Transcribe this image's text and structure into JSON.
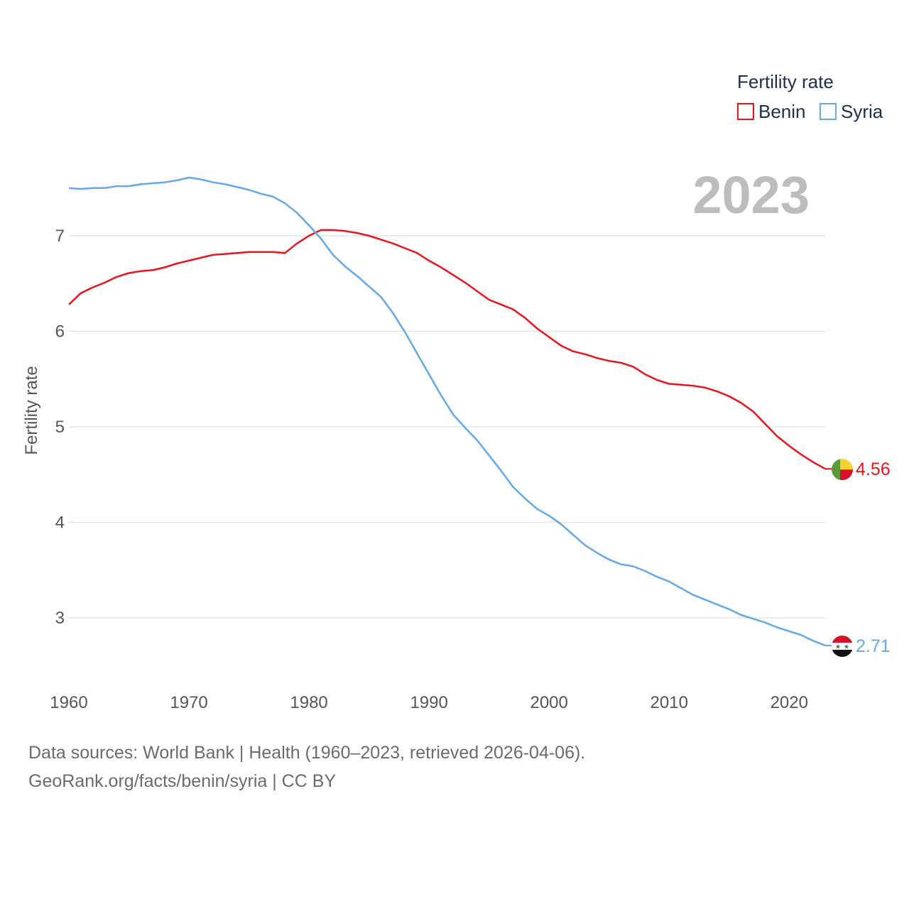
{
  "chart_data": {
    "type": "line",
    "title": "",
    "xlabel": "",
    "ylabel": "Fertility rate",
    "legend_title": "Fertility rate",
    "legend_position": "top-right",
    "current_year_label": "2023",
    "xlim": [
      1960,
      2023
    ],
    "ylim": [
      2.5,
      7.7
    ],
    "x_ticks": [
      1960,
      1970,
      1980,
      1990,
      2000,
      2010,
      2020
    ],
    "y_ticks": [
      3,
      4,
      5,
      6,
      7
    ],
    "grid": true,
    "x": [
      1960,
      1961,
      1962,
      1963,
      1964,
      1965,
      1966,
      1967,
      1968,
      1969,
      1970,
      1971,
      1972,
      1973,
      1974,
      1975,
      1976,
      1977,
      1978,
      1979,
      1980,
      1981,
      1982,
      1983,
      1984,
      1985,
      1986,
      1987,
      1988,
      1989,
      1990,
      1991,
      1992,
      1993,
      1994,
      1995,
      1996,
      1997,
      1998,
      1999,
      2000,
      2001,
      2002,
      2003,
      2004,
      2005,
      2006,
      2007,
      2008,
      2009,
      2010,
      2011,
      2012,
      2013,
      2014,
      2015,
      2016,
      2017,
      2018,
      2019,
      2020,
      2021,
      2022,
      2023
    ],
    "series": [
      {
        "name": "Benin",
        "color": "#e8141c",
        "end_value_label": "4.56",
        "flag": "benin-flag",
        "values": [
          6.28,
          6.4,
          6.46,
          6.51,
          6.57,
          6.61,
          6.63,
          6.64,
          6.67,
          6.71,
          6.74,
          6.77,
          6.8,
          6.81,
          6.82,
          6.83,
          6.83,
          6.83,
          6.82,
          6.92,
          7.0,
          7.06,
          7.06,
          7.05,
          7.03,
          7.0,
          6.96,
          6.92,
          6.87,
          6.82,
          6.74,
          6.67,
          6.59,
          6.51,
          6.42,
          6.33,
          6.28,
          6.23,
          6.14,
          6.03,
          5.94,
          5.85,
          5.79,
          5.76,
          5.72,
          5.69,
          5.67,
          5.63,
          5.55,
          5.49,
          5.45,
          5.44,
          5.43,
          5.41,
          5.37,
          5.32,
          5.25,
          5.16,
          5.03,
          4.9,
          4.8,
          4.71,
          4.63,
          4.56
        ]
      },
      {
        "name": "Syria",
        "color": "#64a8e8",
        "end_value_label": "2.71",
        "flag": "syria-flag",
        "values": [
          7.5,
          7.49,
          7.5,
          7.5,
          7.52,
          7.52,
          7.54,
          7.55,
          7.56,
          7.58,
          7.61,
          7.59,
          7.56,
          7.54,
          7.51,
          7.48,
          7.44,
          7.41,
          7.34,
          7.24,
          7.11,
          6.97,
          6.8,
          6.68,
          6.58,
          6.47,
          6.36,
          6.19,
          5.99,
          5.77,
          5.55,
          5.33,
          5.13,
          4.99,
          4.86,
          4.7,
          4.54,
          4.37,
          4.25,
          4.14,
          4.07,
          3.98,
          3.87,
          3.76,
          3.68,
          3.61,
          3.56,
          3.54,
          3.49,
          3.43,
          3.38,
          3.31,
          3.24,
          3.19,
          3.14,
          3.09,
          3.03,
          2.99,
          2.95,
          2.9,
          2.86,
          2.82,
          2.76,
          2.71
        ]
      }
    ]
  },
  "source": {
    "line1": "Data sources: World Bank | Health (1960–2023, retrieved 2026-04-06).",
    "line2": "GeoRank.org/facts/benin/syria | CC BY"
  }
}
